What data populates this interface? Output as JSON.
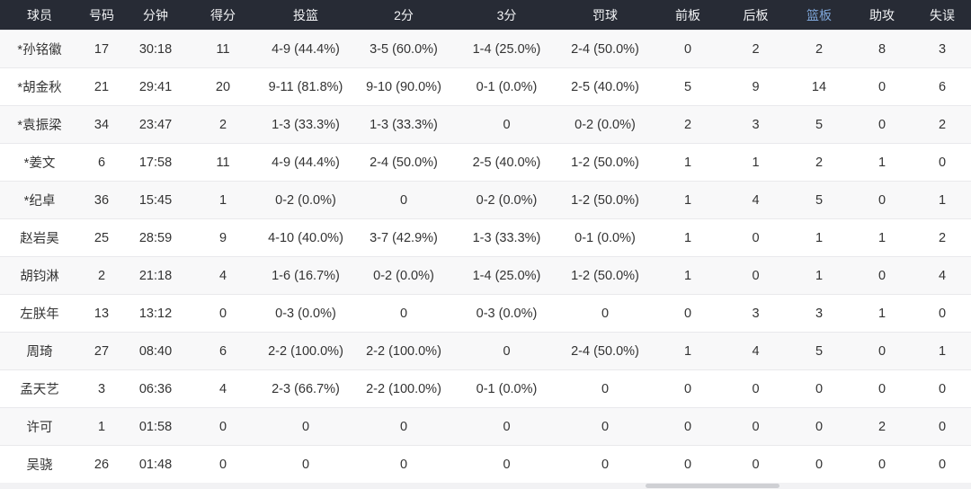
{
  "table": {
    "columns": [
      {
        "key": "player",
        "label": "球员"
      },
      {
        "key": "number",
        "label": "号码"
      },
      {
        "key": "minutes",
        "label": "分钟"
      },
      {
        "key": "points",
        "label": "得分"
      },
      {
        "key": "fg",
        "label": "投篮"
      },
      {
        "key": "two_pt",
        "label": "2分"
      },
      {
        "key": "three_pt",
        "label": "3分"
      },
      {
        "key": "ft",
        "label": "罚球"
      },
      {
        "key": "oreb",
        "label": "前板"
      },
      {
        "key": "dreb",
        "label": "后板"
      },
      {
        "key": "reb",
        "label": "篮板"
      },
      {
        "key": "ast",
        "label": "助攻"
      },
      {
        "key": "tov",
        "label": "失误"
      }
    ],
    "highlighted_column": "reb",
    "rows": [
      [
        "*孙铭徽",
        "17",
        "30:18",
        "11",
        "4-9 (44.4%)",
        "3-5 (60.0%)",
        "1-4 (25.0%)",
        "2-4 (50.0%)",
        "0",
        "2",
        "2",
        "8",
        "3"
      ],
      [
        "*胡金秋",
        "21",
        "29:41",
        "20",
        "9-11 (81.8%)",
        "9-10 (90.0%)",
        "0-1 (0.0%)",
        "2-5 (40.0%)",
        "5",
        "9",
        "14",
        "0",
        "6"
      ],
      [
        "*袁振梁",
        "34",
        "23:47",
        "2",
        "1-3 (33.3%)",
        "1-3 (33.3%)",
        "0",
        "0-2 (0.0%)",
        "2",
        "3",
        "5",
        "0",
        "2"
      ],
      [
        "*姜文",
        "6",
        "17:58",
        "11",
        "4-9 (44.4%)",
        "2-4 (50.0%)",
        "2-5 (40.0%)",
        "1-2 (50.0%)",
        "1",
        "1",
        "2",
        "1",
        "0"
      ],
      [
        "*纪卓",
        "36",
        "15:45",
        "1",
        "0-2 (0.0%)",
        "0",
        "0-2 (0.0%)",
        "1-2 (50.0%)",
        "1",
        "4",
        "5",
        "0",
        "1"
      ],
      [
        "赵岩昊",
        "25",
        "28:59",
        "9",
        "4-10 (40.0%)",
        "3-7 (42.9%)",
        "1-3 (33.3%)",
        "0-1 (0.0%)",
        "1",
        "0",
        "1",
        "1",
        "2"
      ],
      [
        "胡钧淋",
        "2",
        "21:18",
        "4",
        "1-6 (16.7%)",
        "0-2 (0.0%)",
        "1-4 (25.0%)",
        "1-2 (50.0%)",
        "1",
        "0",
        "1",
        "0",
        "4"
      ],
      [
        "左朕年",
        "13",
        "13:12",
        "0",
        "0-3 (0.0%)",
        "0",
        "0-3 (0.0%)",
        "0",
        "0",
        "3",
        "3",
        "1",
        "0"
      ],
      [
        "周琦",
        "27",
        "08:40",
        "6",
        "2-2 (100.0%)",
        "2-2 (100.0%)",
        "0",
        "2-4 (50.0%)",
        "1",
        "4",
        "5",
        "0",
        "1"
      ],
      [
        "孟天艺",
        "3",
        "06:36",
        "4",
        "2-3 (66.7%)",
        "2-2 (100.0%)",
        "0-1 (0.0%)",
        "0",
        "0",
        "0",
        "0",
        "0",
        "0"
      ],
      [
        "许可",
        "1",
        "01:58",
        "0",
        "0",
        "0",
        "0",
        "0",
        "0",
        "0",
        "0",
        "2",
        "0"
      ],
      [
        "吴骁",
        "26",
        "01:48",
        "0",
        "0",
        "0",
        "0",
        "0",
        "0",
        "0",
        "0",
        "0",
        "0"
      ]
    ]
  },
  "colors": {
    "header_bg": "#272b35",
    "header_text": "#f2f3f5",
    "header_highlight_text": "#7ea6d9",
    "row_alt_bg": "#f8f8f9",
    "row_bg": "#ffffff",
    "row_border": "#e9e9ec",
    "cell_text": "#333333"
  }
}
